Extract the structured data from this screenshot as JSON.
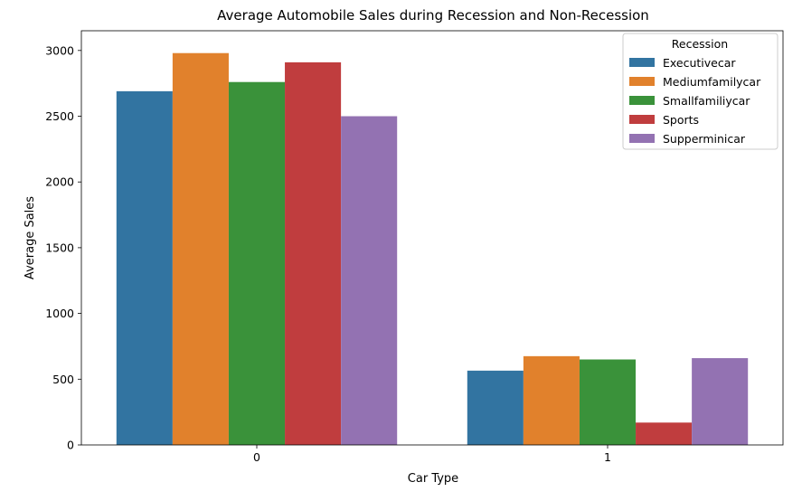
{
  "chart_data": {
    "type": "bar",
    "title": "Average Automobile Sales during Recession and Non-Recession",
    "xlabel": "Car Type",
    "ylabel": "Average Sales",
    "categories": [
      "0",
      "1"
    ],
    "ylim": [
      0,
      3150
    ],
    "yticks": [
      0,
      500,
      1000,
      1500,
      2000,
      2500,
      3000
    ],
    "grid": false,
    "legend": {
      "title": "Recession",
      "placement": "top-right"
    },
    "series": [
      {
        "name": "Executivecar",
        "color": "#3274a1",
        "values": [
          2690,
          565
        ]
      },
      {
        "name": "Mediumfamilycar",
        "color": "#e1812c",
        "values": [
          2980,
          675
        ]
      },
      {
        "name": "Smallfamiliycar",
        "color": "#3a923a",
        "values": [
          2760,
          650
        ]
      },
      {
        "name": "Sports",
        "color": "#c03d3e",
        "values": [
          2910,
          170
        ]
      },
      {
        "name": "Supperminicar",
        "color": "#9372b2",
        "values": [
          2500,
          660
        ]
      }
    ]
  }
}
